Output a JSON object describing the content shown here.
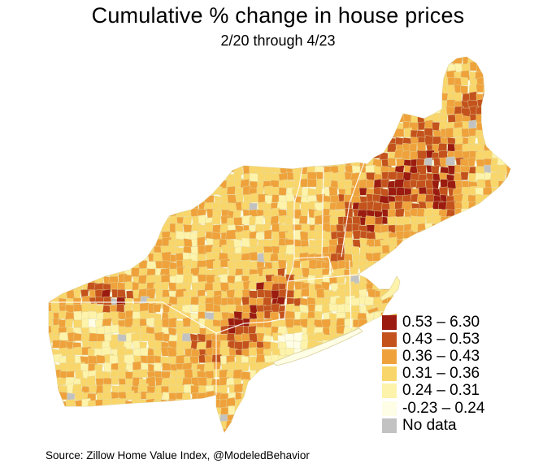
{
  "title": "Cumulative % change in house prices",
  "subtitle": "2/20 through 4/23",
  "source": "Source: Zillow Home Value Index, @ModeledBehavior",
  "legend": [
    {
      "label": "0.53 – 6.30",
      "color": "#9b1b10"
    },
    {
      "label": "0.43 – 0.53",
      "color": "#c4521d"
    },
    {
      "label": "0.36 – 0.43",
      "color": "#efa23b"
    },
    {
      "label": "0.31 – 0.36",
      "color": "#f9d66a"
    },
    {
      "label": "0.24 – 0.31",
      "color": "#fdf3aa"
    },
    {
      "label": "-0.23 – 0.24",
      "color": "#fefde6"
    },
    {
      "label": "No data",
      "color": "#c2c2c2"
    }
  ]
}
